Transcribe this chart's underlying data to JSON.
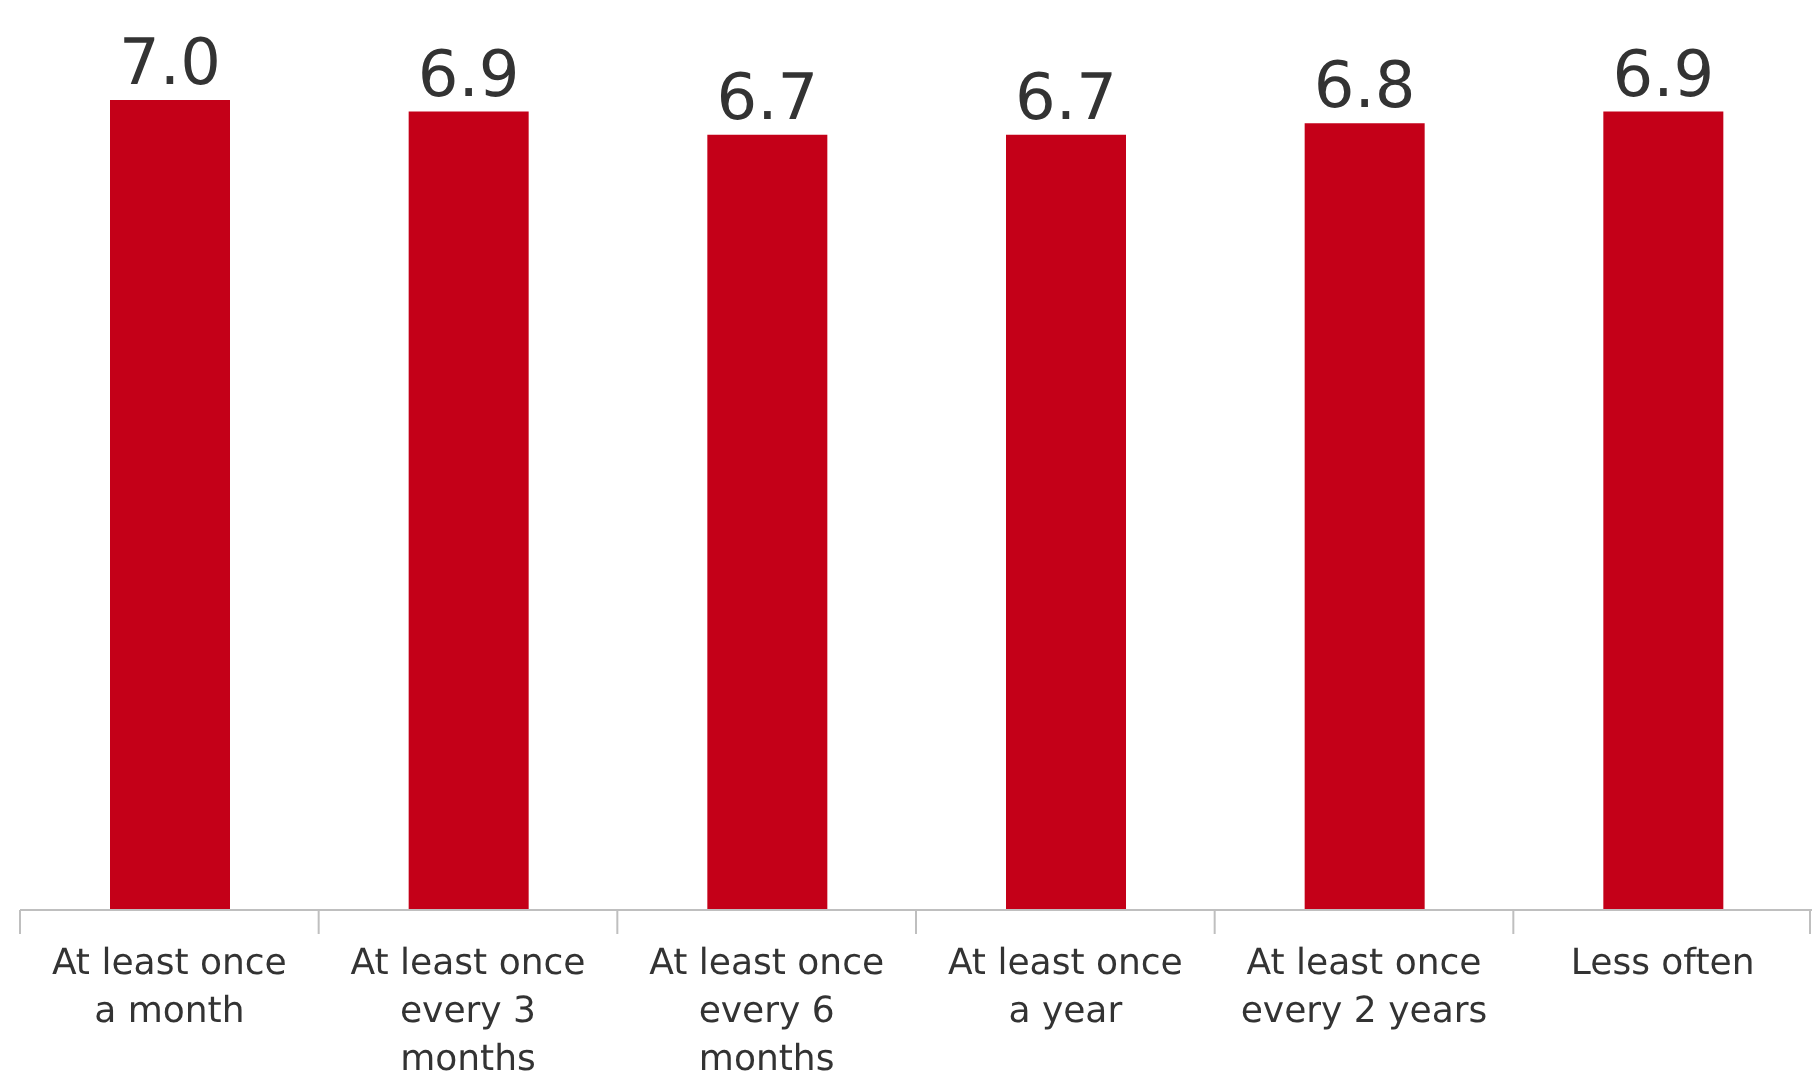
{
  "chart_data": {
    "type": "bar",
    "categories": [
      "At least once a month",
      "At least once every 3 months",
      "At least once every 6 months",
      "At least once a year",
      "At least once every 2 years",
      "Less often"
    ],
    "values": [
      7.0,
      6.9,
      6.7,
      6.7,
      6.8,
      6.9
    ],
    "value_labels": [
      "7.0",
      "6.9",
      "6.7",
      "6.7",
      "6.8",
      "6.9"
    ],
    "color": "#c40018",
    "tick_labels": "x"
  }
}
